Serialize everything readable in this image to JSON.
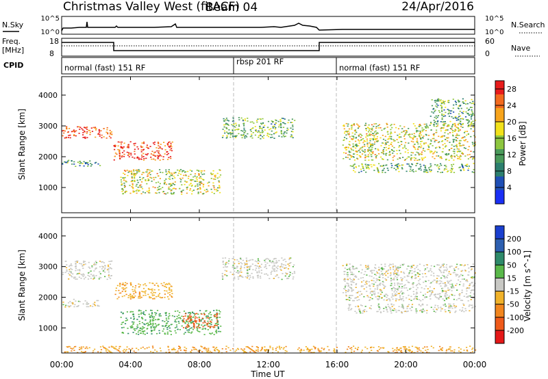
{
  "header": {
    "title": "Christmas Valley West (fitACF)",
    "beam": "Beam 04",
    "date": "24/Apr/2016"
  },
  "colors": {
    "line": "#000000",
    "mode_divider": "#bbbbbb",
    "power_scale": [
      "#1a2ff5",
      "#1f4fb5",
      "#2c7f6e",
      "#4a9a5a",
      "#8dc63f",
      "#f2e11a",
      "#f7a41c",
      "#f36a1e",
      "#e81b1b"
    ],
    "velocity_scale": [
      "#1a3fcf",
      "#2d5fb0",
      "#2e8a6a",
      "#5ab84a",
      "#c8c8c4",
      "#f0b22a",
      "#f2861e",
      "#ef5a1a",
      "#e51818"
    ]
  },
  "panels": {
    "nsky": {
      "label": "N.Sky",
      "left_ticks": [
        "10^5",
        "10^0"
      ],
      "right_ticks": [
        "10^5",
        "10^0"
      ],
      "right_label": "N.Search"
    },
    "freq": {
      "label_line1": "Freq.",
      "label_line2": "[MHz]",
      "left_ticks": [
        "18",
        "8"
      ],
      "right_ticks": [
        "60",
        "0"
      ],
      "right_label": "Nave"
    },
    "cpid": {
      "label": "CPID",
      "segments": [
        "normal (fast) 151 RF",
        "rbsp 201 RF",
        "normal (fast) 151 RF"
      ]
    }
  },
  "chart_data": [
    {
      "type": "heatmap",
      "parameter": "power",
      "xlabel": "Time UT",
      "ylabel": "Slant Range [km]",
      "x_tick_labels": [
        "00:00",
        "04:00",
        "08:00",
        "12:00",
        "16:00",
        "20:00",
        "00:00"
      ],
      "y_ticks": [
        1000,
        2000,
        3000,
        4000
      ],
      "xlim_hours": [
        0,
        24
      ],
      "ylim_km": [
        180,
        4600
      ],
      "colorbar": {
        "label": "Power [dB]",
        "ticks": [
          4,
          8,
          12,
          16,
          20,
          24,
          28
        ],
        "range": [
          0,
          30
        ]
      },
      "echo_bands": [
        {
          "t_start": 0.0,
          "t_end": 2.9,
          "range_km": [
            2600,
            3000
          ],
          "value": 27
        },
        {
          "t_start": 0.0,
          "t_end": 2.2,
          "range_km": [
            1700,
            1900
          ],
          "value": 11
        },
        {
          "t_start": 3.0,
          "t_end": 6.4,
          "range_km": [
            1900,
            2500
          ],
          "value": 28
        },
        {
          "t_start": 3.4,
          "t_end": 9.2,
          "range_km": [
            800,
            1600
          ],
          "value": 17
        },
        {
          "t_start": 9.3,
          "t_end": 13.5,
          "range_km": [
            2600,
            3300
          ],
          "value": 13
        },
        {
          "t_start": 16.3,
          "t_end": 24.0,
          "range_km": [
            1900,
            3100
          ],
          "value": 17
        },
        {
          "t_start": 16.6,
          "t_end": 24.0,
          "range_km": [
            1500,
            1800
          ],
          "value": 13
        },
        {
          "t_start": 21.4,
          "t_end": 24.0,
          "range_km": [
            3000,
            3900
          ],
          "value": 12
        }
      ]
    },
    {
      "type": "heatmap",
      "parameter": "velocity",
      "xlabel": "Time UT",
      "ylabel": "Slant Range [km]",
      "x_tick_labels": [
        "00:00",
        "04:00",
        "08:00",
        "12:00",
        "16:00",
        "20:00",
        "00:00"
      ],
      "y_ticks": [
        1000,
        2000,
        3000,
        4000
      ],
      "xlim_hours": [
        0,
        24
      ],
      "ylim_km": [
        180,
        4600
      ],
      "colorbar": {
        "label": "Velocity [m s^-1]",
        "ticks": [
          "200",
          "100",
          "50",
          "15",
          "-15",
          "-50",
          "-100",
          "-200"
        ]
      },
      "echo_bands": [
        {
          "t_start": 0.0,
          "t_end": 2.9,
          "range_km": [
            2600,
            3200
          ],
          "value": 0
        },
        {
          "t_start": 0.0,
          "t_end": 2.2,
          "range_km": [
            1700,
            1950
          ],
          "value": 0
        },
        {
          "t_start": 3.0,
          "t_end": 6.4,
          "range_km": [
            1950,
            2500
          ],
          "value": -40
        },
        {
          "t_start": 3.4,
          "t_end": 9.2,
          "range_km": [
            800,
            1600
          ],
          "value": 40
        },
        {
          "t_start": 7.0,
          "t_end": 9.0,
          "range_km": [
            1000,
            1500
          ],
          "value": -120
        },
        {
          "t_start": 9.3,
          "t_end": 13.5,
          "range_km": [
            2600,
            3300
          ],
          "value": 0
        },
        {
          "t_start": 16.3,
          "t_end": 24.0,
          "range_km": [
            1900,
            3100
          ],
          "value": 0
        },
        {
          "t_start": 16.6,
          "t_end": 24.0,
          "range_km": [
            1500,
            1800
          ],
          "value": 0
        },
        {
          "t_start": 0.0,
          "t_end": 24.0,
          "range_km": [
            200,
            420
          ],
          "value": -45
        }
      ]
    }
  ]
}
